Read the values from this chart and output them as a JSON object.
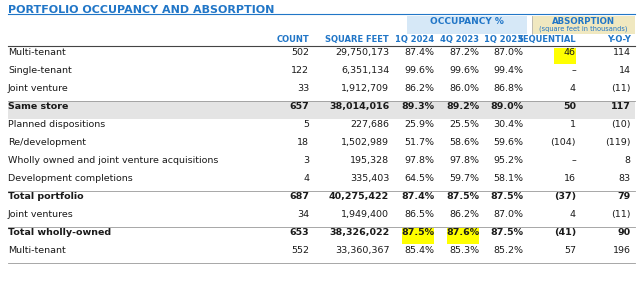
{
  "title": "PORTFOLIO OCCUPANCY AND ABSORPTION",
  "title_color": "#2176C7",
  "rows": [
    {
      "label": "Multi-tenant",
      "bold": false,
      "bg": null,
      "count": "502",
      "sqft": "29,750,173",
      "occ1q24": "87.4%",
      "occ4q23": "87.2%",
      "occ1q23": "87.0%",
      "seq": "46",
      "yoy": "114",
      "seq_hl": true,
      "occ1_hl": false,
      "occ2_hl": false,
      "div_above": false
    },
    {
      "label": "Single-tenant",
      "bold": false,
      "bg": null,
      "count": "122",
      "sqft": "6,351,134",
      "occ1q24": "99.6%",
      "occ4q23": "99.6%",
      "occ1q23": "99.4%",
      "seq": "–",
      "yoy": "14",
      "seq_hl": false,
      "occ1_hl": false,
      "occ2_hl": false,
      "div_above": false
    },
    {
      "label": "Joint venture",
      "bold": false,
      "bg": null,
      "count": "33",
      "sqft": "1,912,709",
      "occ1q24": "86.2%",
      "occ4q23": "86.0%",
      "occ1q23": "86.8%",
      "seq": "4",
      "yoy": "(11)",
      "seq_hl": false,
      "occ1_hl": false,
      "occ2_hl": false,
      "div_above": false
    },
    {
      "label": "Same store",
      "bold": true,
      "bg": "#e4e4e4",
      "count": "657",
      "sqft": "38,014,016",
      "occ1q24": "89.3%",
      "occ4q23": "89.2%",
      "occ1q23": "89.0%",
      "seq": "50",
      "yoy": "117",
      "seq_hl": false,
      "occ1_hl": false,
      "occ2_hl": false,
      "div_above": true
    },
    {
      "label": "Planned dispositions",
      "bold": false,
      "bg": null,
      "count": "5",
      "sqft": "227,686",
      "occ1q24": "25.9%",
      "occ4q23": "25.5%",
      "occ1q23": "30.4%",
      "seq": "1",
      "yoy": "(10)",
      "seq_hl": false,
      "occ1_hl": false,
      "occ2_hl": false,
      "div_above": false
    },
    {
      "label": "Re/development",
      "bold": false,
      "bg": null,
      "count": "18",
      "sqft": "1,502,989",
      "occ1q24": "51.7%",
      "occ4q23": "58.6%",
      "occ1q23": "59.6%",
      "seq": "(104)",
      "yoy": "(119)",
      "seq_hl": false,
      "occ1_hl": false,
      "occ2_hl": false,
      "div_above": false
    },
    {
      "label": "Wholly owned and joint venture acquisitions",
      "bold": false,
      "bg": null,
      "count": "3",
      "sqft": "195,328",
      "occ1q24": "97.8%",
      "occ4q23": "97.8%",
      "occ1q23": "95.2%",
      "seq": "–",
      "yoy": "8",
      "seq_hl": false,
      "occ1_hl": false,
      "occ2_hl": false,
      "div_above": false
    },
    {
      "label": "Development completions",
      "bold": false,
      "bg": null,
      "count": "4",
      "sqft": "335,403",
      "occ1q24": "64.5%",
      "occ4q23": "59.7%",
      "occ1q23": "58.1%",
      "seq": "16",
      "yoy": "83",
      "seq_hl": false,
      "occ1_hl": false,
      "occ2_hl": false,
      "div_above": false
    },
    {
      "label": "Total portfolio",
      "bold": true,
      "bg": null,
      "count": "687",
      "sqft": "40,275,422",
      "occ1q24": "87.4%",
      "occ4q23": "87.5%",
      "occ1q23": "87.5%",
      "seq": "(37)",
      "yoy": "79",
      "seq_hl": false,
      "occ1_hl": false,
      "occ2_hl": false,
      "div_above": true
    },
    {
      "label": "Joint ventures",
      "bold": false,
      "bg": null,
      "count": "34",
      "sqft": "1,949,400",
      "occ1q24": "86.5%",
      "occ4q23": "86.2%",
      "occ1q23": "87.0%",
      "seq": "4",
      "yoy": "(11)",
      "seq_hl": false,
      "occ1_hl": false,
      "occ2_hl": false,
      "div_above": false
    },
    {
      "label": "Total wholly-owned",
      "bold": true,
      "bg": null,
      "count": "653",
      "sqft": "38,326,022",
      "occ1q24": "87.5%",
      "occ4q23": "87.6%",
      "occ1q23": "87.5%",
      "seq": "(41)",
      "yoy": "90",
      "seq_hl": false,
      "occ1_hl": true,
      "occ2_hl": true,
      "div_above": true
    },
    {
      "label": "Multi-tenant",
      "bold": false,
      "bg": null,
      "count": "552",
      "sqft": "33,360,367",
      "occ1q24": "85.4%",
      "occ4q23": "85.3%",
      "occ1q23": "85.2%",
      "seq": "57",
      "yoy": "196",
      "seq_hl": false,
      "occ1_hl": false,
      "occ2_hl": false,
      "div_above": false
    }
  ],
  "col_color": "#2176C7",
  "occ_bg": "#d6e8f7",
  "abs_bg": "#f0e8c0",
  "hl_yellow": "#ffff00",
  "text_color": "#1a1a1a",
  "bg_color": "#ffffff",
  "title_line_color": "#2176C7",
  "divider_color": "#999999",
  "fs_title": 8.0,
  "fs_header": 6.0,
  "fs_data": 6.8
}
